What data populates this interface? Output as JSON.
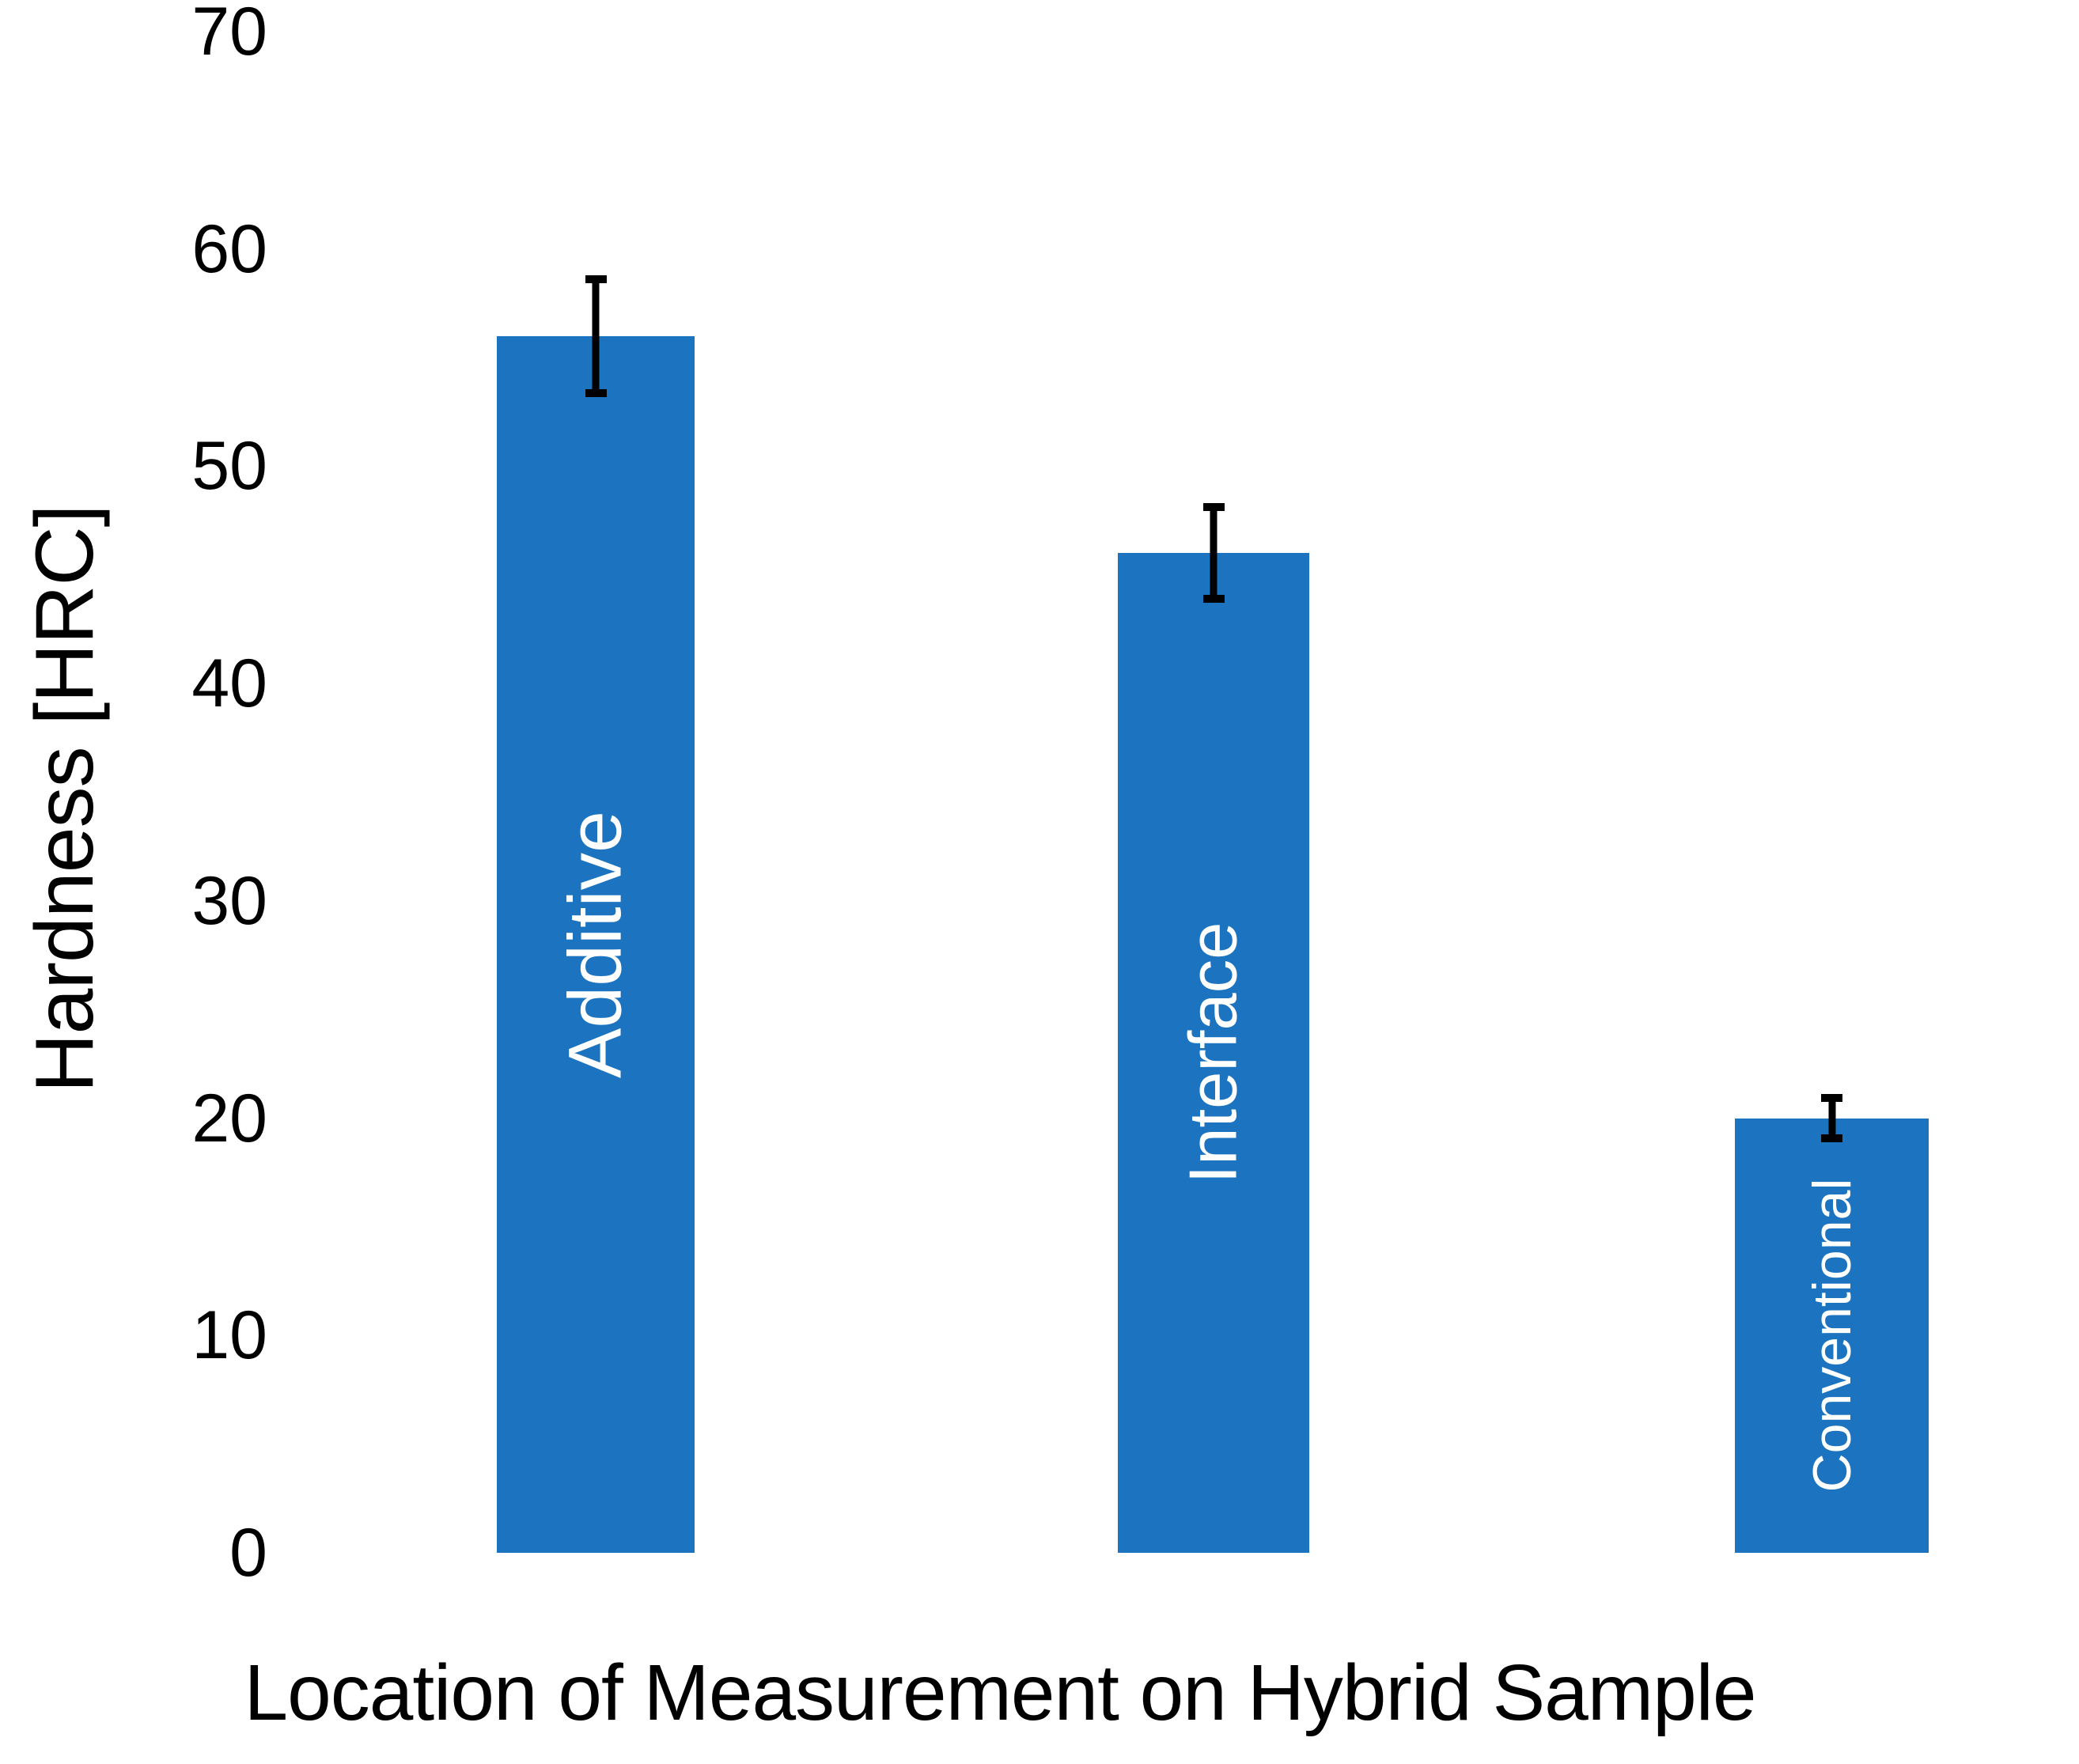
{
  "figure": {
    "background_color": "#FFFFFF",
    "text_color": "#000000"
  },
  "chart_data": {
    "type": "bar",
    "title": "",
    "xlabel": "Location of Measurement on Hybrid Sample",
    "ylabel": "Hardness [HRC]",
    "categories": [
      "Additive",
      "Interface",
      "Conventional"
    ],
    "values": [
      56,
      46,
      20
    ],
    "errors": [
      2.8,
      2.3,
      1.1
    ],
    "ylim": [
      0,
      70
    ],
    "yticks": [
      0,
      10,
      20,
      30,
      40,
      50,
      60,
      70
    ],
    "grid": false,
    "legend": "none",
    "bar_color": "#1C73BF",
    "bar_label_color": "#FFFFFF",
    "error_bar_color": "#000000",
    "bar_labels_placement": "inside-vertical"
  }
}
